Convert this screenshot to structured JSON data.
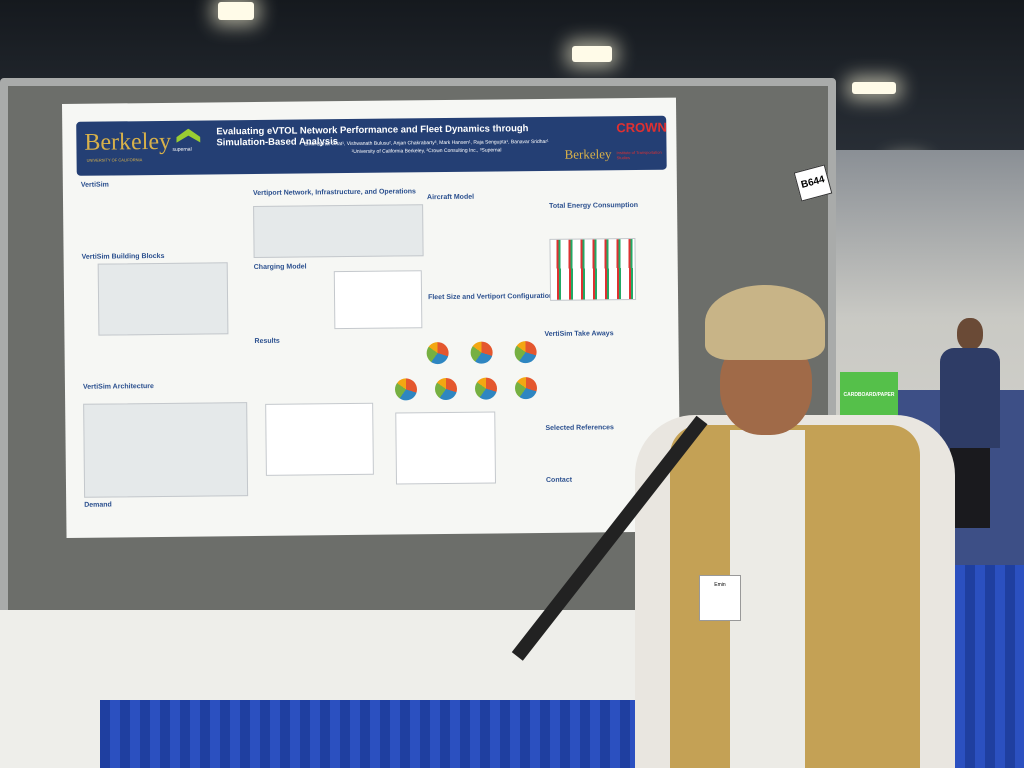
{
  "scene": "poster session",
  "booth_number": "B644",
  "poster": {
    "logos": {
      "berkeley": "Berkeley",
      "berkeley_sub": "UNIVERSITY OF CALIFORNIA",
      "supernal": "supernal",
      "crown": "CROWN",
      "its": "Institute of Transportation Studies"
    },
    "title": "Evaluating eVTOL Network Performance and Fleet Dynamics through Simulation-Based Analysis",
    "authors": "Emin Burak Onat¹, Vishwanath Bulusu², Anjan Chakrabarty³, Mark Hansen¹, Raja Sengupta¹, Banavar Sridhar¹",
    "affiliations": "¹University of California Berkeley, ²Crown Consulting Inc., ³Supernal",
    "sections": [
      "VertiSim",
      "VertiSim Building Blocks",
      "VertiSim Architecture",
      "Demand",
      "Vertiport Network, Infrastructure, and Operations",
      "Charging Model",
      "Results",
      "Aircraft Model",
      "Fleet Size and Vertiport Configuration",
      "Total Energy Consumption",
      "VertiSim Take Aways",
      "Selected References",
      "Contact"
    ]
  },
  "recycling_sign": "CARDBOARD/PAPER",
  "badge_text": "Emin"
}
